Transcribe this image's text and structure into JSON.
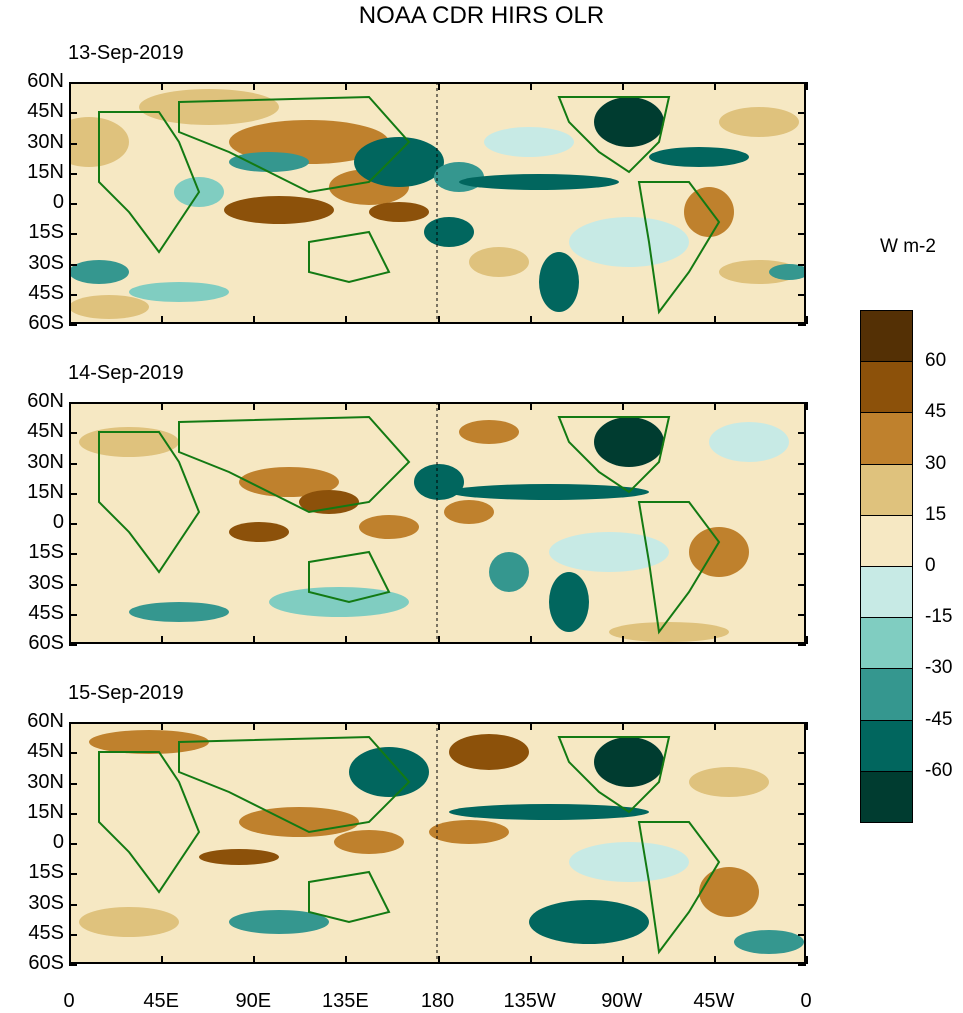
{
  "title": "NOAA CDR HIRS OLR",
  "units": "W m-2",
  "panels": [
    {
      "date": "13-Sep-2019"
    },
    {
      "date": "14-Sep-2019"
    },
    {
      "date": "15-Sep-2019"
    }
  ],
  "lat_labels": [
    "60N",
    "45N",
    "30N",
    "15N",
    "0",
    "15S",
    "30S",
    "45S",
    "60S"
  ],
  "lon_labels": [
    "0",
    "45E",
    "90E",
    "135E",
    "180",
    "135W",
    "90W",
    "45W",
    "0"
  ],
  "colorbar": {
    "labels": [
      "60",
      "45",
      "30",
      "15",
      "0",
      "-15",
      "-30",
      "-45",
      "-60"
    ],
    "colors": [
      "#543005",
      "#8c510a",
      "#bf812d",
      "#dfc27d",
      "#f6e8c3",
      "#c7eae5",
      "#80cdc1",
      "#35978f",
      "#01665e",
      "#003c30"
    ]
  },
  "colors": {
    "coastline": "#137a13",
    "background": "#f6e8c3"
  }
}
